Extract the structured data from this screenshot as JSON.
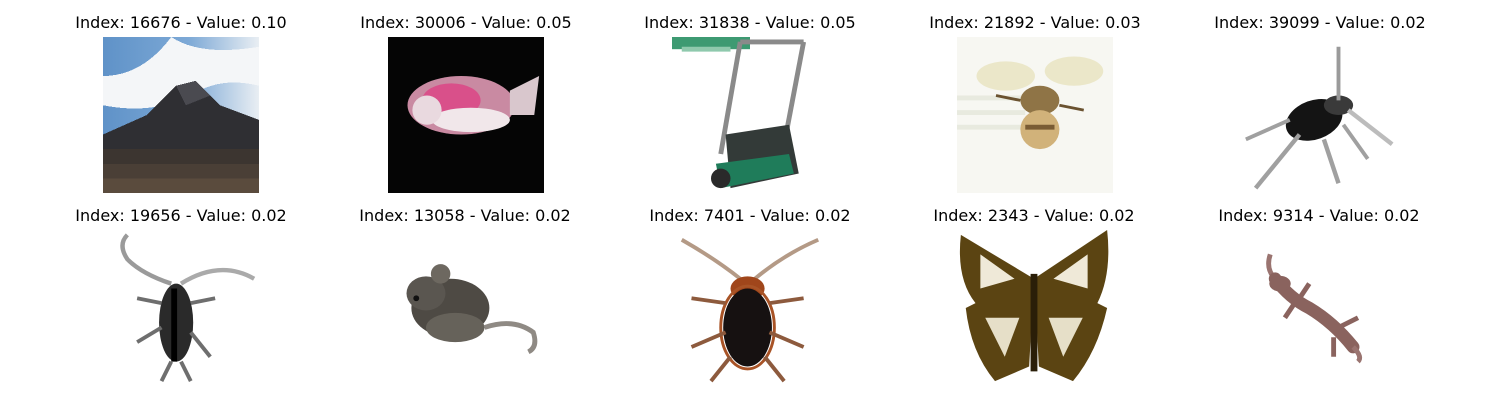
{
  "panels": [
    {
      "title": "Index: 16676 - Value: 0.10",
      "image": "mountain-sky-image"
    },
    {
      "title": "Index: 30006 - Value: 0.05",
      "image": "pink-fish-image"
    },
    {
      "title": "Index: 31838 - Value: 0.05",
      "image": "lawn-mower-image"
    },
    {
      "title": "Index: 21892 - Value: 0.03",
      "image": "bee-image"
    },
    {
      "title": "Index: 39099 - Value: 0.02",
      "image": "black-insect-image"
    },
    {
      "title": "Index: 19656 - Value: 0.02",
      "image": "longhorn-beetle-image"
    },
    {
      "title": "Index: 13058 - Value: 0.02",
      "image": "mouse-image"
    },
    {
      "title": "Index: 7401 - Value: 0.02",
      "image": "cockroach-image"
    },
    {
      "title": "Index: 2343 - Value: 0.02",
      "image": "butterfly-image"
    },
    {
      "title": "Index: 9314 - Value: 0.02",
      "image": "lizard-image"
    }
  ]
}
